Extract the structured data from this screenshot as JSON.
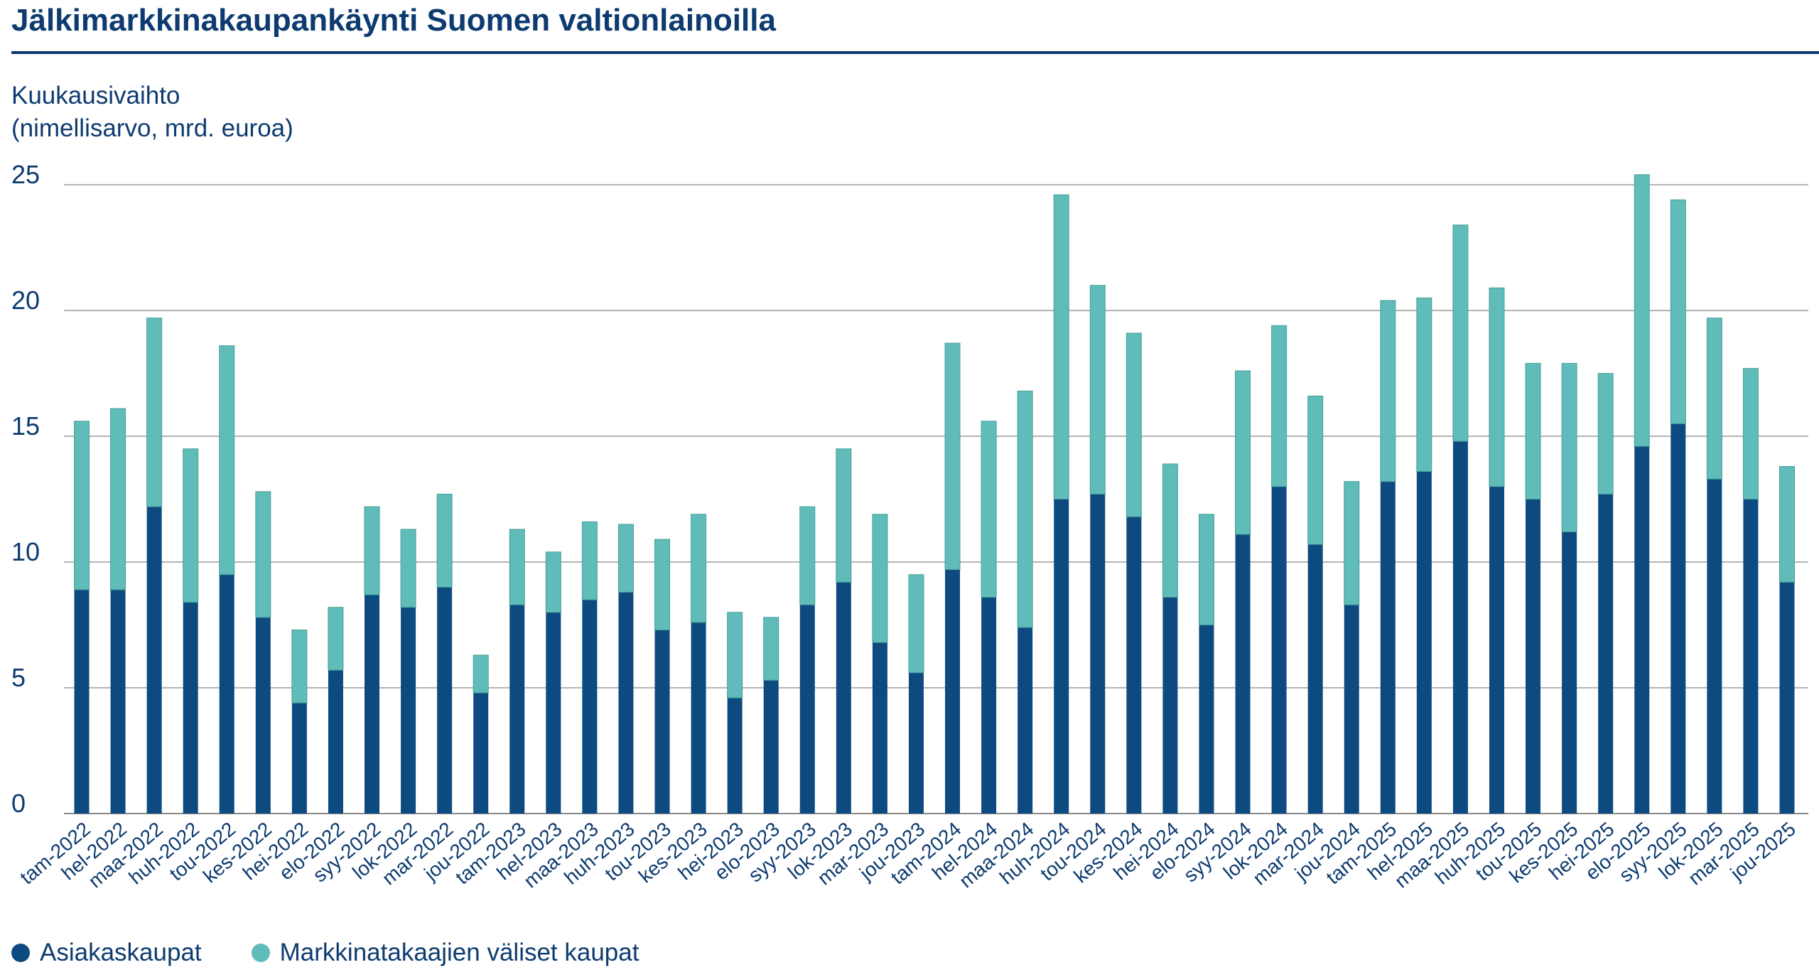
{
  "page": {
    "title": "Jälkimarkkinakaupankäynti Suomen valtionlainoilla",
    "ylabel_line1": "Kuukausivaihto",
    "ylabel_line2": "(nimellisarvo, mrd. euroa)"
  },
  "colors": {
    "asiakaskaupat": "#0d4a80",
    "markkinatakaajat": "#5fbcb8",
    "grid": "#b5b5b5",
    "text": "#0d3b70"
  },
  "legend": [
    {
      "label": "Asiakaskaupat",
      "color": "#0d4a80"
    },
    {
      "label": "Markkinatakaajien väliset kaupat",
      "color": "#5fbcb8"
    }
  ],
  "chart_data": {
    "type": "bar",
    "stacked": true,
    "title": "Jälkimarkkinakaupankäynti Suomen valtionlainoilla",
    "ylabel": "Kuukausivaihto (nimellisarvo, mrd. euroa)",
    "xlabel": "",
    "ylim": [
      0,
      25
    ],
    "yticks": [
      0,
      5,
      10,
      15,
      20,
      25
    ],
    "grid": true,
    "legend_position": "bottom-left",
    "categories": [
      "tam-2022",
      "hel-2022",
      "maa-2022",
      "huh-2022",
      "tou-2022",
      "kes-2022",
      "hei-2022",
      "elo-2022",
      "syy-2022",
      "lok-2022",
      "mar-2022",
      "jou-2022",
      "tam-2023",
      "hel-2023",
      "maa-2023",
      "huh-2023",
      "tou-2023",
      "kes-2023",
      "hei-2023",
      "elo-2023",
      "syy-2023",
      "lok-2023",
      "mar-2023",
      "jou-2023",
      "tam-2024",
      "hel-2024",
      "maa-2024",
      "huh-2024",
      "tou-2024",
      "kes-2024",
      "hei-2024",
      "elo-2024",
      "syy-2024",
      "lok-2024",
      "mar-2024",
      "jou-2024",
      "tam-2025",
      "hel-2025",
      "maa-2025",
      "huh-2025",
      "tou-2025",
      "kes-2025",
      "hei-2025",
      "elo-2025",
      "syy-2025",
      "lok-2025",
      "mar-2025",
      "jou-2025"
    ],
    "series": [
      {
        "name": "Asiakaskaupat",
        "color": "#0d4a80",
        "values": [
          8.9,
          8.9,
          12.2,
          8.4,
          9.5,
          7.8,
          4.4,
          5.7,
          8.7,
          8.2,
          9.0,
          4.8,
          8.3,
          8.0,
          8.5,
          8.8,
          7.3,
          7.6,
          4.6,
          5.3,
          8.3,
          9.2,
          6.8,
          5.6,
          9.7,
          8.6,
          7.4,
          12.5,
          12.7,
          11.8,
          8.6,
          7.5,
          11.1,
          13.0,
          10.7,
          8.3,
          13.2,
          13.6,
          14.8,
          13.0,
          12.5,
          11.2,
          12.7,
          14.6,
          15.5,
          13.3,
          12.5,
          9.2
        ]
      },
      {
        "name": "Markkinatakaajien väliset kaupat",
        "color": "#5fbcb8",
        "values": [
          6.7,
          7.2,
          7.5,
          6.1,
          9.1,
          5.0,
          2.9,
          2.5,
          3.5,
          3.1,
          3.7,
          1.5,
          3.0,
          2.4,
          3.1,
          2.7,
          3.6,
          4.3,
          3.4,
          2.5,
          3.9,
          5.3,
          5.1,
          3.9,
          9.0,
          7.0,
          9.4,
          12.1,
          8.3,
          7.3,
          5.3,
          4.4,
          6.5,
          6.4,
          5.9,
          4.9,
          7.2,
          6.9,
          8.6,
          7.9,
          5.4,
          6.7,
          4.8,
          10.8,
          8.9,
          6.4,
          5.2,
          4.6
        ]
      }
    ]
  }
}
